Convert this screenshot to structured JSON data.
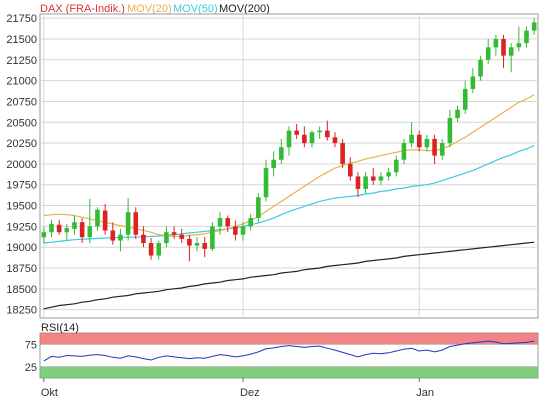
{
  "legend": [
    {
      "label": "DAX (FRA-Indik.)",
      "color": "#dd3333"
    },
    {
      "label": "MOV(20)",
      "color": "#e8b24a"
    },
    {
      "label": "MOV(50)",
      "color": "#3ccbe3"
    },
    {
      "label": "MOV(200)",
      "color": "#222222"
    }
  ],
  "rsi_label": "RSI(14)",
  "colors": {
    "up": "#33bb33",
    "down": "#dd2222",
    "mov20": "#e8b24a",
    "mov50": "#3ccbe3",
    "mov200": "#222222",
    "rsi_line": "#2233cc",
    "rsi_overbought": "#ee6f6f",
    "rsi_oversold": "#66c566",
    "grid": "#d6d6d6"
  },
  "chart_data": [
    {
      "type": "candlestick",
      "title": "",
      "ylim": [
        18150,
        21800
      ],
      "y_ticks": [
        18250,
        18500,
        18750,
        19000,
        19250,
        19500,
        19750,
        20000,
        20250,
        20500,
        20750,
        21000,
        21250,
        21500,
        21750
      ],
      "x_ticks": [
        "Okt",
        "Dez",
        "Jan"
      ],
      "grid": true,
      "ohlc": [
        [
          19120,
          19240,
          19050,
          19180
        ],
        [
          19180,
          19330,
          19120,
          19280
        ],
        [
          19270,
          19330,
          19150,
          19180
        ],
        [
          19180,
          19280,
          19080,
          19230
        ],
        [
          19220,
          19380,
          19150,
          19300
        ],
        [
          19300,
          19350,
          19050,
          19120
        ],
        [
          19120,
          19580,
          19050,
          19250
        ],
        [
          19250,
          19480,
          19200,
          19450
        ],
        [
          19440,
          19520,
          19150,
          19200
        ],
        [
          19200,
          19300,
          19030,
          19080
        ],
        [
          19080,
          19220,
          18950,
          19150
        ],
        [
          19150,
          19590,
          19080,
          19420
        ],
        [
          19420,
          19480,
          19100,
          19150
        ],
        [
          19150,
          19250,
          19000,
          19050
        ],
        [
          19050,
          19110,
          18850,
          18900
        ],
        [
          18900,
          19080,
          18850,
          19050
        ],
        [
          19050,
          19250,
          19000,
          19180
        ],
        [
          19180,
          19250,
          19100,
          19150
        ],
        [
          19150,
          19220,
          19050,
          19100
        ],
        [
          19100,
          19150,
          18830,
          19020
        ],
        [
          19020,
          19120,
          18950,
          19050
        ],
        [
          19050,
          19120,
          18880,
          18980
        ],
        [
          18980,
          19300,
          18950,
          19250
        ],
        [
          19250,
          19420,
          19150,
          19350
        ],
        [
          19350,
          19380,
          19180,
          19250
        ],
        [
          19250,
          19320,
          19080,
          19150
        ],
        [
          19150,
          19300,
          19080,
          19250
        ],
        [
          19250,
          19400,
          19200,
          19350
        ],
        [
          19350,
          19650,
          19300,
          19600
        ],
        [
          19600,
          20050,
          19550,
          19950
        ],
        [
          19950,
          20150,
          19850,
          20050
        ],
        [
          20050,
          20300,
          20000,
          20200
        ],
        [
          20200,
          20450,
          20100,
          20400
        ],
        [
          20400,
          20480,
          20300,
          20350
        ],
        [
          20350,
          20450,
          20200,
          20250
        ],
        [
          20250,
          20400,
          20200,
          20380
        ],
        [
          20380,
          20450,
          20300,
          20400
        ],
        [
          20400,
          20520,
          20280,
          20320
        ],
        [
          20320,
          20380,
          20200,
          20250
        ],
        [
          20250,
          20300,
          19950,
          20000
        ],
        [
          20000,
          20080,
          19800,
          19850
        ],
        [
          19850,
          19900,
          19600,
          19700
        ],
        [
          19700,
          19900,
          19650,
          19850
        ],
        [
          19850,
          19950,
          19750,
          19800
        ],
        [
          19800,
          19900,
          19750,
          19850
        ],
        [
          19850,
          19950,
          19800,
          19900
        ],
        [
          19900,
          20100,
          19850,
          20050
        ],
        [
          20050,
          20300,
          20000,
          20250
        ],
        [
          20250,
          20500,
          20200,
          20350
        ],
        [
          20350,
          20400,
          20150,
          20200
        ],
        [
          20200,
          20350,
          20150,
          20300
        ],
        [
          20300,
          20350,
          20000,
          20100
        ],
        [
          20100,
          20300,
          20050,
          20250
        ],
        [
          20250,
          20650,
          20200,
          20550
        ],
        [
          20550,
          20700,
          20500,
          20650
        ],
        [
          20650,
          21000,
          20600,
          20900
        ],
        [
          20900,
          21150,
          20850,
          21050
        ],
        [
          21050,
          21300,
          21000,
          21250
        ],
        [
          21250,
          21500,
          21200,
          21400
        ],
        [
          21400,
          21550,
          21300,
          21500
        ],
        [
          21500,
          21550,
          21150,
          21300
        ],
        [
          21300,
          21450,
          21100,
          21400
        ],
        [
          21400,
          21650,
          21350,
          21450
        ],
        [
          21450,
          21650,
          21400,
          21600
        ],
        [
          21600,
          21750,
          21550,
          21700
        ]
      ],
      "mov20": [
        19380,
        19390,
        19395,
        19390,
        19380,
        19360,
        19340,
        19320,
        19300,
        19280,
        19260,
        19240,
        19220,
        19200,
        19180,
        19150,
        19140,
        19130,
        19130,
        19140,
        19150,
        19160,
        19180,
        19200,
        19220,
        19250,
        19280,
        19320,
        19370,
        19430,
        19490,
        19550,
        19610,
        19670,
        19730,
        19790,
        19850,
        19900,
        19950,
        19980,
        20010,
        20030,
        20060,
        20080,
        20100,
        20120,
        20140,
        20160,
        20170,
        20170,
        20160,
        20160,
        20180,
        20220,
        20270,
        20320,
        20380,
        20440,
        20500,
        20560,
        20620,
        20680,
        20740,
        20780,
        20830
      ],
      "mov50": [
        19050,
        19060,
        19070,
        19080,
        19090,
        19095,
        19100,
        19105,
        19110,
        19115,
        19115,
        19120,
        19120,
        19125,
        19130,
        19135,
        19140,
        19150,
        19160,
        19170,
        19180,
        19190,
        19200,
        19210,
        19220,
        19230,
        19250,
        19270,
        19290,
        19320,
        19350,
        19390,
        19430,
        19460,
        19490,
        19520,
        19550,
        19570,
        19590,
        19600,
        19610,
        19620,
        19640,
        19650,
        19670,
        19680,
        19700,
        19710,
        19730,
        19740,
        19750,
        19770,
        19800,
        19830,
        19860,
        19890,
        19920,
        19960,
        20000,
        20040,
        20080,
        20110,
        20150,
        20180,
        20220
      ],
      "mov200": [
        18260,
        18280,
        18300,
        18310,
        18320,
        18340,
        18350,
        18370,
        18380,
        18400,
        18410,
        18420,
        18440,
        18450,
        18460,
        18470,
        18490,
        18500,
        18510,
        18530,
        18540,
        18560,
        18570,
        18580,
        18600,
        18610,
        18620,
        18640,
        18650,
        18660,
        18670,
        18690,
        18700,
        18710,
        18730,
        18740,
        18750,
        18770,
        18780,
        18790,
        18800,
        18810,
        18830,
        18840,
        18850,
        18860,
        18870,
        18890,
        18900,
        18910,
        18920,
        18930,
        18940,
        18950,
        18960,
        18970,
        18980,
        18990,
        19000,
        19010,
        19020,
        19030,
        19040,
        19050,
        19060
      ]
    },
    {
      "type": "line",
      "title": "RSI(14)",
      "ylim": [
        0,
        100
      ],
      "y_ticks": [
        25,
        75
      ],
      "overbought": 75,
      "oversold": 25,
      "series": [
        {
          "values": [
            38,
            48,
            46,
            50,
            49,
            48,
            51,
            52,
            50,
            46,
            44,
            49,
            47,
            43,
            40,
            46,
            49,
            47,
            45,
            43,
            45,
            44,
            48,
            52,
            50,
            47,
            49,
            53,
            58,
            65,
            67,
            70,
            72,
            70,
            68,
            70,
            71,
            66,
            62,
            57,
            52,
            47,
            52,
            55,
            54,
            56,
            60,
            64,
            66,
            60,
            62,
            58,
            62,
            70,
            73,
            76,
            78,
            80,
            82,
            80,
            76,
            77,
            78,
            79,
            82
          ]
        }
      ]
    }
  ]
}
